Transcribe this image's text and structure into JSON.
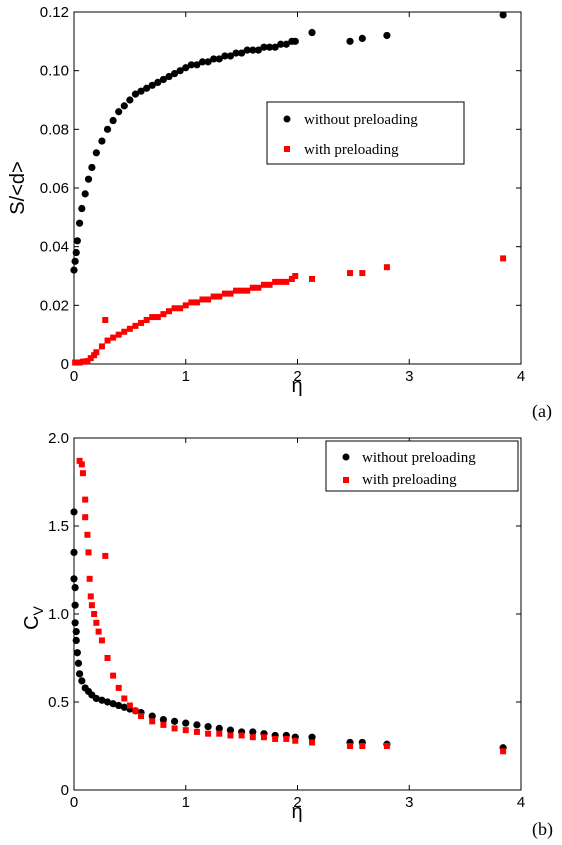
{
  "chart_data": [
    {
      "type": "scatter",
      "panel_label": "(a)",
      "xlabel": "η",
      "ylabel": "S/<d>",
      "xlim": [
        0,
        4
      ],
      "ylim": [
        0,
        0.12
      ],
      "xticks": [
        0,
        1,
        2,
        3,
        4
      ],
      "xtick_labels": [
        "0",
        "1",
        "2",
        "3",
        "4"
      ],
      "yticks": [
        0,
        0.02,
        0.04,
        0.06,
        0.08,
        0.1,
        0.12
      ],
      "ytick_labels": [
        "0",
        "0.02",
        "0.04",
        "0.06",
        "0.08",
        "0.10",
        "0.12"
      ],
      "grid": false,
      "legend_position": "upper-right",
      "series": [
        {
          "name": "without preloading",
          "color": "#000000",
          "marker": "circle",
          "x": [
            0.0,
            0.01,
            0.02,
            0.03,
            0.05,
            0.07,
            0.1,
            0.13,
            0.16,
            0.2,
            0.25,
            0.3,
            0.35,
            0.4,
            0.45,
            0.5,
            0.55,
            0.6,
            0.65,
            0.7,
            0.75,
            0.8,
            0.85,
            0.9,
            0.95,
            1.0,
            1.05,
            1.1,
            1.15,
            1.2,
            1.25,
            1.3,
            1.35,
            1.4,
            1.45,
            1.5,
            1.55,
            1.6,
            1.65,
            1.7,
            1.75,
            1.8,
            1.85,
            1.9,
            1.95,
            1.98,
            2.13,
            2.47,
            2.58,
            2.8,
            3.84
          ],
          "y": [
            0.032,
            0.035,
            0.038,
            0.042,
            0.048,
            0.053,
            0.058,
            0.063,
            0.067,
            0.072,
            0.076,
            0.08,
            0.083,
            0.086,
            0.088,
            0.09,
            0.092,
            0.093,
            0.094,
            0.095,
            0.096,
            0.097,
            0.098,
            0.099,
            0.1,
            0.101,
            0.102,
            0.102,
            0.103,
            0.103,
            0.104,
            0.104,
            0.105,
            0.105,
            0.106,
            0.106,
            0.107,
            0.107,
            0.107,
            0.108,
            0.108,
            0.108,
            0.109,
            0.109,
            0.11,
            0.11,
            0.113,
            0.11,
            0.111,
            0.112,
            0.119
          ]
        },
        {
          "name": "with preloading",
          "color": "#ff0000",
          "marker": "square",
          "x": [
            0.01,
            0.03,
            0.05,
            0.08,
            0.1,
            0.12,
            0.15,
            0.18,
            0.2,
            0.25,
            0.28,
            0.3,
            0.35,
            0.4,
            0.45,
            0.5,
            0.55,
            0.6,
            0.65,
            0.7,
            0.75,
            0.8,
            0.85,
            0.9,
            0.95,
            1.0,
            1.05,
            1.1,
            1.15,
            1.2,
            1.25,
            1.3,
            1.35,
            1.4,
            1.45,
            1.5,
            1.55,
            1.6,
            1.65,
            1.7,
            1.75,
            1.8,
            1.85,
            1.9,
            1.95,
            1.98,
            2.13,
            2.47,
            2.58,
            2.8,
            3.84
          ],
          "y": [
            0.0005,
            0.0005,
            0.0005,
            0.0008,
            0.0008,
            0.001,
            0.002,
            0.003,
            0.004,
            0.006,
            0.015,
            0.008,
            0.009,
            0.01,
            0.011,
            0.012,
            0.013,
            0.014,
            0.015,
            0.016,
            0.016,
            0.017,
            0.018,
            0.019,
            0.019,
            0.02,
            0.021,
            0.021,
            0.022,
            0.022,
            0.023,
            0.023,
            0.024,
            0.024,
            0.025,
            0.025,
            0.025,
            0.026,
            0.026,
            0.027,
            0.027,
            0.028,
            0.028,
            0.028,
            0.029,
            0.03,
            0.029,
            0.031,
            0.031,
            0.033,
            0.036
          ]
        }
      ]
    },
    {
      "type": "scatter",
      "panel_label": "(b)",
      "xlabel": "η",
      "ylabel": "C",
      "ylabel_sub": "V",
      "xlim": [
        0,
        4
      ],
      "ylim": [
        0,
        2
      ],
      "xticks": [
        0,
        1,
        2,
        3,
        4
      ],
      "xtick_labels": [
        "0",
        "1",
        "2",
        "3",
        "4"
      ],
      "yticks": [
        0,
        0.5,
        1.0,
        1.5,
        2.0
      ],
      "ytick_labels": [
        "0",
        "0.5",
        "1.0",
        "1.5",
        "2.0"
      ],
      "grid": false,
      "legend_position": "upper-right",
      "series": [
        {
          "name": "without preloading",
          "color": "#000000",
          "marker": "circle",
          "x": [
            0.0,
            0.0,
            0.0,
            0.01,
            0.01,
            0.01,
            0.02,
            0.02,
            0.03,
            0.04,
            0.05,
            0.07,
            0.1,
            0.13,
            0.16,
            0.2,
            0.25,
            0.3,
            0.35,
            0.4,
            0.45,
            0.5,
            0.55,
            0.6,
            0.7,
            0.8,
            0.9,
            1.0,
            1.1,
            1.2,
            1.3,
            1.4,
            1.5,
            1.6,
            1.7,
            1.8,
            1.9,
            1.98,
            2.13,
            2.47,
            2.58,
            2.8,
            3.84
          ],
          "y": [
            1.58,
            1.35,
            1.2,
            1.15,
            1.05,
            0.95,
            0.9,
            0.85,
            0.78,
            0.72,
            0.66,
            0.62,
            0.58,
            0.56,
            0.54,
            0.52,
            0.51,
            0.5,
            0.49,
            0.48,
            0.47,
            0.46,
            0.45,
            0.44,
            0.42,
            0.4,
            0.39,
            0.38,
            0.37,
            0.36,
            0.35,
            0.34,
            0.33,
            0.33,
            0.32,
            0.31,
            0.31,
            0.3,
            0.3,
            0.27,
            0.27,
            0.26,
            0.24
          ]
        },
        {
          "name": "with preloading",
          "color": "#ff0000",
          "marker": "square",
          "x": [
            0.05,
            0.07,
            0.08,
            0.1,
            0.1,
            0.12,
            0.13,
            0.14,
            0.15,
            0.16,
            0.18,
            0.2,
            0.22,
            0.25,
            0.28,
            0.3,
            0.35,
            0.4,
            0.45,
            0.5,
            0.55,
            0.6,
            0.7,
            0.8,
            0.9,
            1.0,
            1.1,
            1.2,
            1.3,
            1.4,
            1.5,
            1.6,
            1.7,
            1.8,
            1.9,
            1.98,
            2.13,
            2.47,
            2.58,
            2.8,
            3.84
          ],
          "y": [
            1.87,
            1.85,
            1.8,
            1.65,
            1.55,
            1.45,
            1.35,
            1.2,
            1.1,
            1.05,
            1.0,
            0.95,
            0.9,
            0.85,
            1.33,
            0.75,
            0.65,
            0.58,
            0.52,
            0.48,
            0.45,
            0.42,
            0.39,
            0.37,
            0.35,
            0.34,
            0.33,
            0.32,
            0.32,
            0.31,
            0.31,
            0.3,
            0.3,
            0.29,
            0.29,
            0.28,
            0.27,
            0.25,
            0.25,
            0.25,
            0.22
          ]
        }
      ]
    }
  ]
}
